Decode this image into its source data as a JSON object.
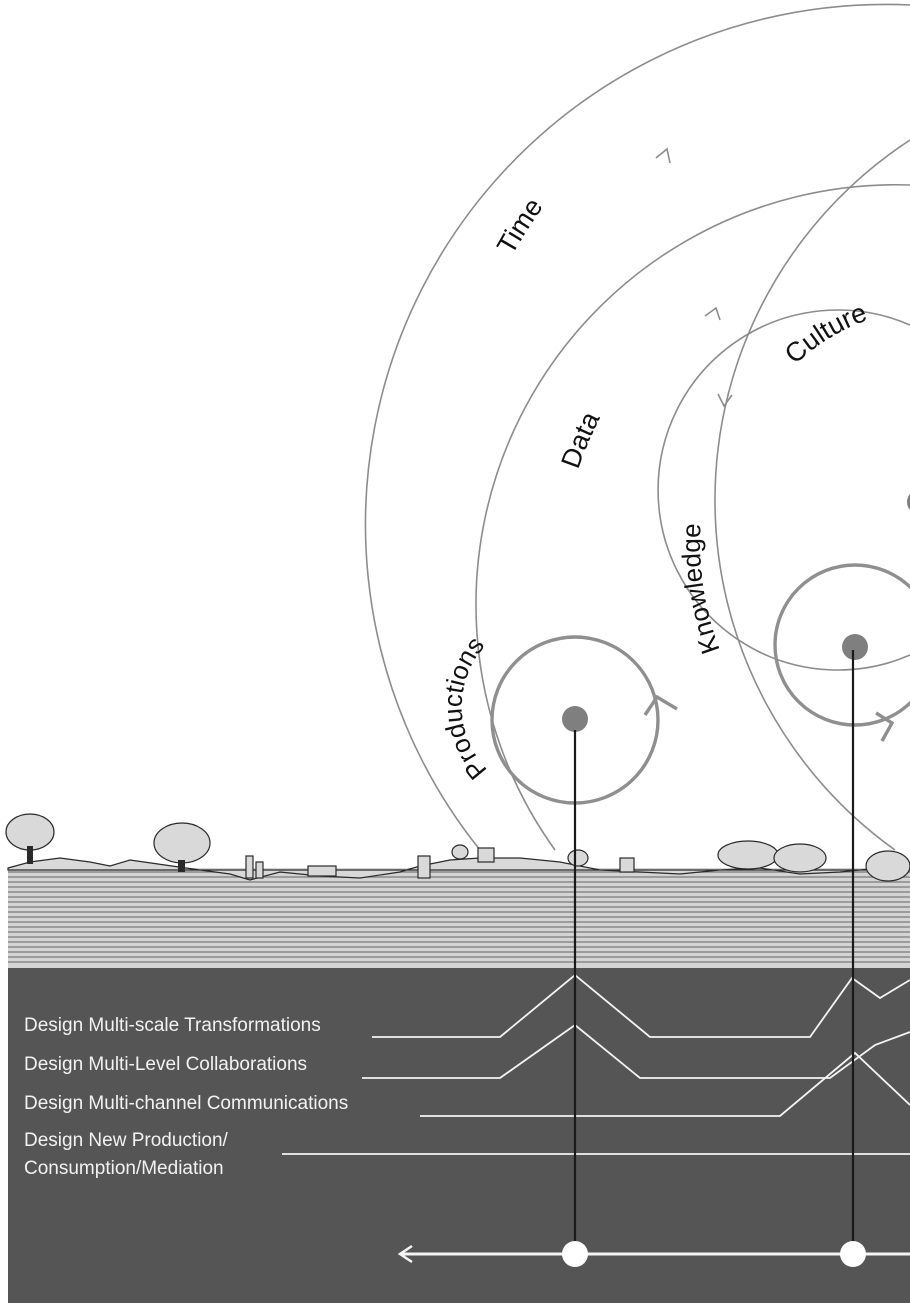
{
  "orbit_labels": {
    "time": "Time",
    "data": "Data",
    "knowledge": "Knowledge",
    "culture": "Culture",
    "productions": "Productions"
  },
  "lanes": {
    "multi_scale": "Design Multi-scale Transformations",
    "multi_level": "Design Multi-Level Collaborations",
    "multi_channel": "Design Multi-channel Communications",
    "new_production_line1": "Design New Production/",
    "new_production_line2": "Consumption/Mediation"
  },
  "colors": {
    "background": "#ffffff",
    "ground_panel": "#555555",
    "orbit_stroke": "#8c8c8c",
    "node_fill": "#7f7f7f",
    "lane_text": "#f2f2f2"
  }
}
